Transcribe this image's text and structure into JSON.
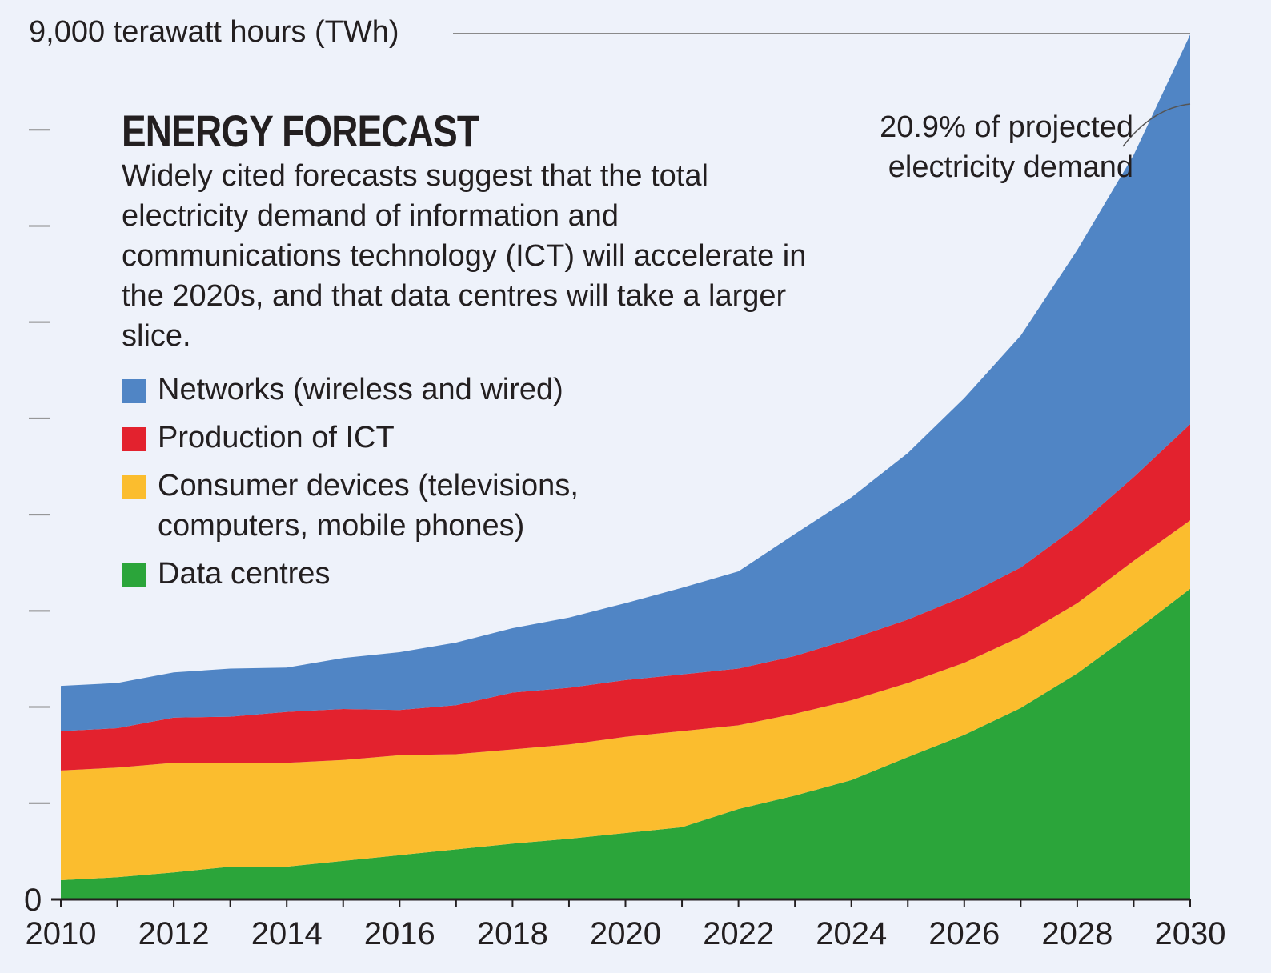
{
  "chart_data": {
    "type": "area",
    "stacked": true,
    "title": "ENERGY FORECAST",
    "description": "Widely cited forecasts suggest that the total electricity demand of information and communications technology (ICT) will accelerate in the 2020s, and that data centres will take a larger slice.",
    "ylabel": "9,000 terawatt hours (TWh)",
    "ylim": [
      0,
      9000
    ],
    "y_tick_labels": [
      "0"
    ],
    "x": [
      2010,
      2011,
      2012,
      2013,
      2014,
      2015,
      2016,
      2017,
      2018,
      2019,
      2020,
      2021,
      2022,
      2023,
      2024,
      2025,
      2026,
      2027,
      2028,
      2029,
      2030
    ],
    "x_tick_labels": [
      "2010",
      "2012",
      "2014",
      "2016",
      "2018",
      "2020",
      "2022",
      "2024",
      "2026",
      "2028",
      "2030"
    ],
    "series": [
      {
        "name": "Data centres",
        "color": "#2ba53a",
        "values": [
          200,
          230,
          280,
          340,
          340,
          400,
          460,
          520,
          580,
          630,
          690,
          750,
          940,
          1080,
          1240,
          1480,
          1710,
          1990,
          2350,
          2780,
          3230
        ]
      },
      {
        "name": "Consumer devices (televisions, computers, mobile phones)",
        "color": "#fbbd2e",
        "values": [
          1140,
          1140,
          1140,
          1080,
          1080,
          1050,
          1040,
          990,
          980,
          980,
          1000,
          1000,
          870,
          850,
          830,
          770,
          750,
          740,
          730,
          740,
          710
        ]
      },
      {
        "name": "Production of ICT",
        "color": "#e3222e",
        "values": [
          410,
          410,
          470,
          480,
          530,
          530,
          470,
          510,
          590,
          590,
          590,
          590,
          590,
          600,
          640,
          660,
          690,
          720,
          800,
          870,
          1000
        ]
      },
      {
        "name": "Networks (wireless and wired)",
        "color": "#5085c5",
        "values": [
          470,
          470,
          470,
          500,
          460,
          530,
          600,
          650,
          670,
          730,
          800,
          900,
          1010,
          1270,
          1470,
          1730,
          2060,
          2410,
          2870,
          3350,
          4050
        ]
      }
    ],
    "legend": [
      {
        "label": "Networks (wireless and wired)",
        "color": "#5085c5"
      },
      {
        "label": "Production of ICT",
        "color": "#e3222e"
      },
      {
        "label": "Consumer devices (televisions, computers, mobile phones)",
        "color": "#fbbd2e"
      },
      {
        "label": "Data centres",
        "color": "#2ba53a"
      }
    ],
    "annotations": [
      {
        "text": "20.9% of projected electricity demand",
        "x": 2030,
        "y": 8990
      }
    ]
  }
}
